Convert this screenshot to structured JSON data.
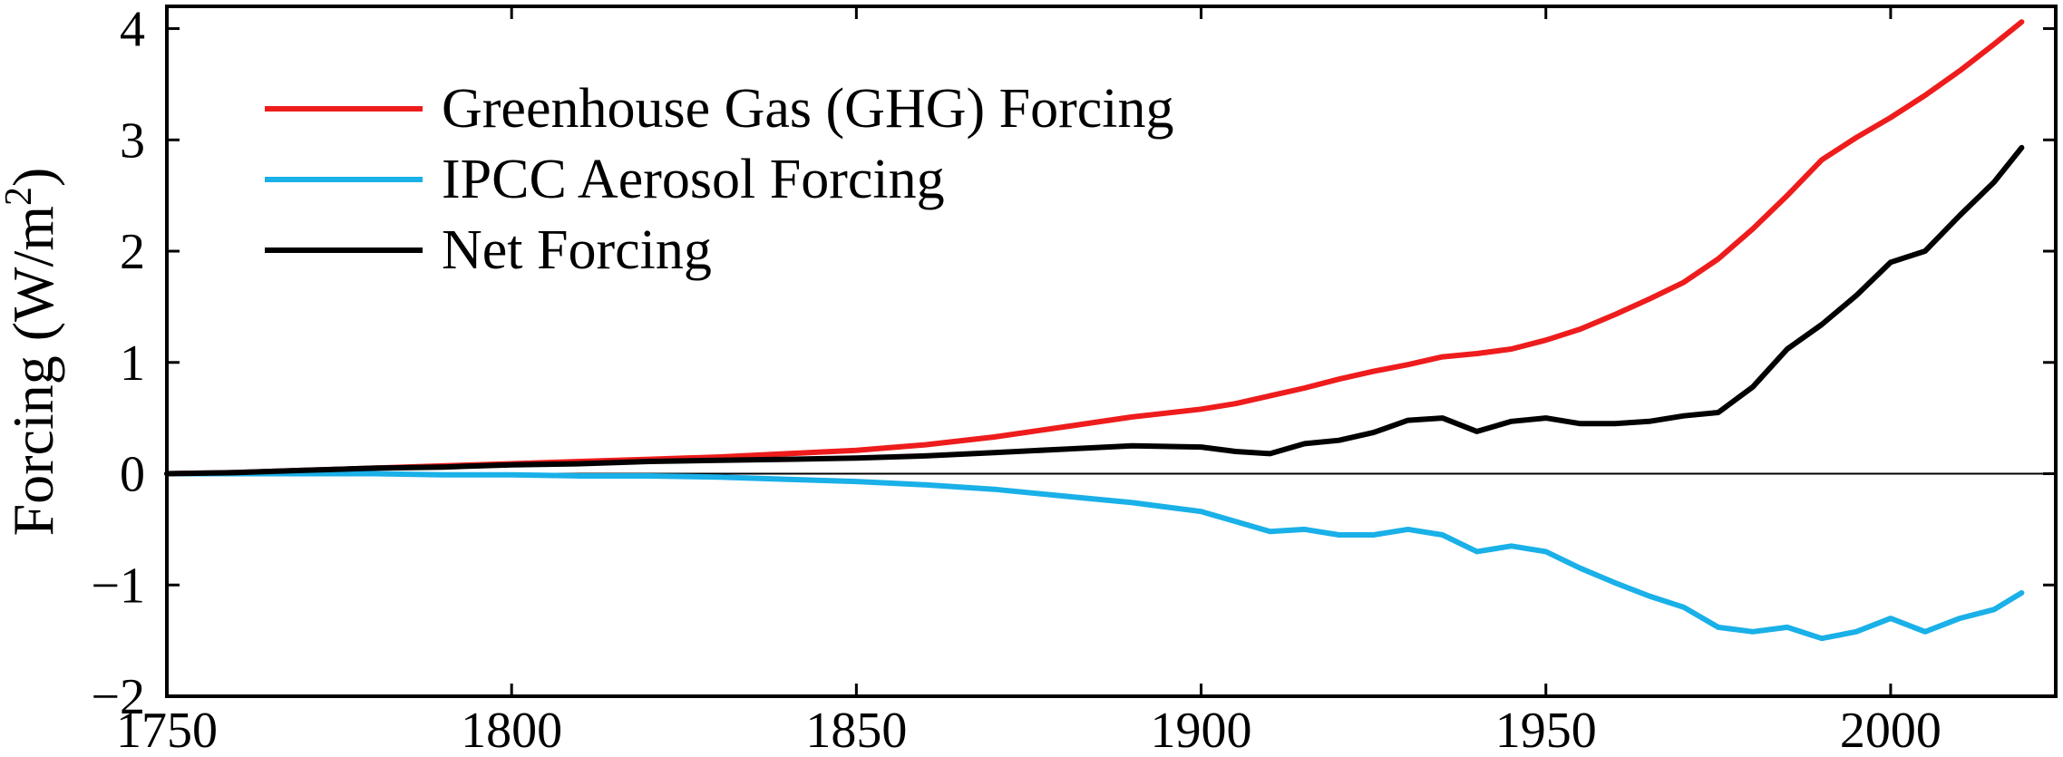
{
  "chart_data": {
    "type": "line",
    "title": "",
    "xlabel": "",
    "ylabel": "Forcing (W/m",
    "ylabel_superscript": "2",
    "ylabel_close": ")",
    "xlim": [
      1750,
      2020
    ],
    "ylim": [
      -2,
      4.2
    ],
    "xticks": [
      1750,
      1800,
      1850,
      1900,
      1950,
      2000
    ],
    "yticks": [
      -2,
      -1,
      0,
      1,
      2,
      3,
      4
    ],
    "xtick_labels": [
      "1750",
      "1800",
      "1850",
      "1900",
      "1950",
      "2000"
    ],
    "ytick_labels": [
      "−2",
      "−1",
      "0",
      "1",
      "2",
      "3",
      "4"
    ],
    "zero_line": true,
    "grid": false,
    "legend_position": "top-left",
    "x": [
      1750,
      1760,
      1770,
      1780,
      1790,
      1800,
      1810,
      1820,
      1830,
      1840,
      1850,
      1860,
      1870,
      1880,
      1890,
      1900,
      1905,
      1910,
      1915,
      1920,
      1925,
      1930,
      1935,
      1940,
      1945,
      1950,
      1955,
      1960,
      1965,
      1970,
      1975,
      1980,
      1985,
      1990,
      1995,
      2000,
      2005,
      2010,
      2015,
      2019
    ],
    "series": [
      {
        "name": "Greenhouse Gas (GHG) Forcing",
        "color": "#ee1c1c",
        "values": [
          0.0,
          0.01,
          0.03,
          0.05,
          0.07,
          0.09,
          0.11,
          0.13,
          0.15,
          0.18,
          0.21,
          0.26,
          0.33,
          0.42,
          0.51,
          0.58,
          0.63,
          0.7,
          0.77,
          0.85,
          0.92,
          0.98,
          1.05,
          1.08,
          1.12,
          1.2,
          1.3,
          1.43,
          1.57,
          1.72,
          1.93,
          2.2,
          2.5,
          2.82,
          3.02,
          3.2,
          3.4,
          3.62,
          3.86,
          4.06
        ]
      },
      {
        "name": "IPCC Aerosol Forcing",
        "color": "#1ab0e8",
        "values": [
          0.0,
          0.0,
          0.0,
          0.0,
          -0.01,
          -0.01,
          -0.02,
          -0.02,
          -0.03,
          -0.05,
          -0.07,
          -0.1,
          -0.14,
          -0.2,
          -0.26,
          -0.34,
          -0.43,
          -0.52,
          -0.5,
          -0.55,
          -0.55,
          -0.5,
          -0.55,
          -0.7,
          -0.65,
          -0.7,
          -0.85,
          -0.98,
          -1.1,
          -1.2,
          -1.38,
          -1.42,
          -1.38,
          -1.48,
          -1.42,
          -1.3,
          -1.42,
          -1.3,
          -1.22,
          -1.07
        ]
      },
      {
        "name": "Net Forcing",
        "color": "#000000",
        "values": [
          0.0,
          0.01,
          0.03,
          0.05,
          0.06,
          0.08,
          0.09,
          0.11,
          0.12,
          0.13,
          0.14,
          0.16,
          0.19,
          0.22,
          0.25,
          0.24,
          0.2,
          0.18,
          0.27,
          0.3,
          0.37,
          0.48,
          0.5,
          0.38,
          0.47,
          0.5,
          0.45,
          0.45,
          0.47,
          0.52,
          0.55,
          0.78,
          1.12,
          1.34,
          1.6,
          1.9,
          2.0,
          2.32,
          2.62,
          2.93
        ]
      }
    ]
  }
}
